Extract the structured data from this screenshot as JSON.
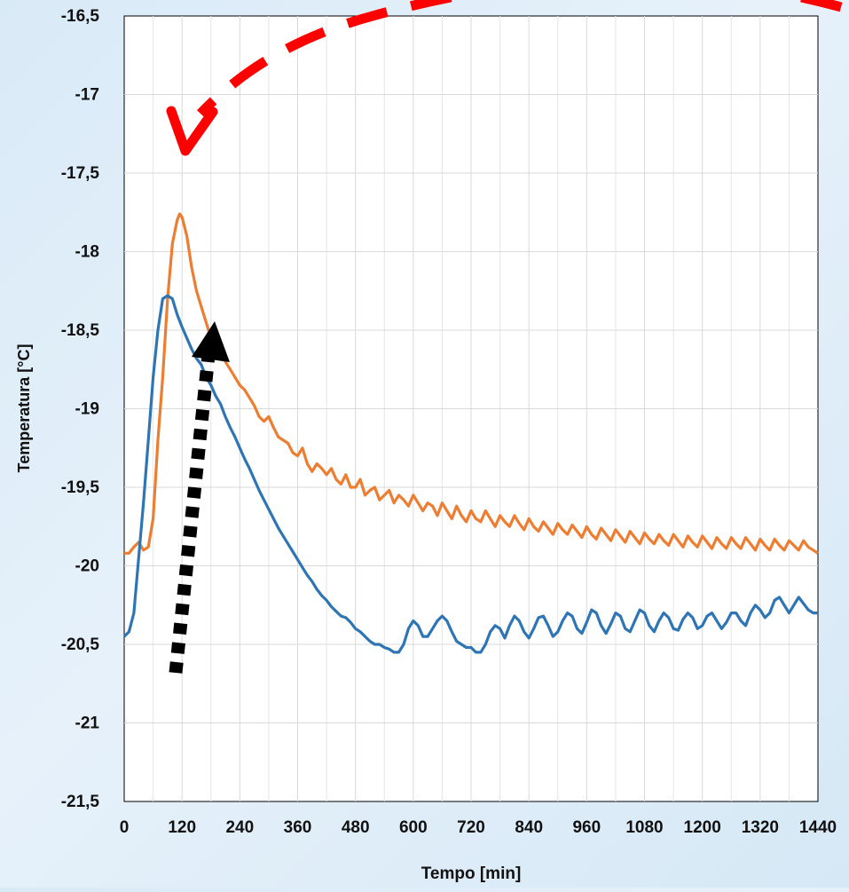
{
  "chart_data": {
    "type": "line",
    "title": "",
    "xlabel": "Tempo [min]",
    "ylabel": "Temperatura [°C]",
    "xlim": [
      0,
      1440
    ],
    "ylim": [
      -21.5,
      -16.5
    ],
    "x_ticks": [
      0,
      120,
      240,
      360,
      480,
      600,
      720,
      840,
      960,
      1080,
      1200,
      1320,
      1440
    ],
    "y_ticks": [
      -21.5,
      -21,
      -20.5,
      -20,
      -19.5,
      -19,
      -18.5,
      -18,
      -17.5,
      -17,
      -16.5
    ],
    "x_tick_labels": [
      "0",
      "120",
      "240",
      "360",
      "480",
      "600",
      "720",
      "840",
      "960",
      "1080",
      "1200",
      "1320",
      "1440"
    ],
    "y_tick_labels": [
      "-21,5",
      "-21",
      "-20,5",
      "-20",
      "-19,5",
      "-19",
      "-18,5",
      "-18",
      "-17,5",
      "-17",
      "-16,5"
    ],
    "grid": true,
    "legend": "none",
    "series": [
      {
        "color": "#ed7d31",
        "points": [
          [
            0,
            -19.92
          ],
          [
            10,
            -19.92
          ],
          [
            20,
            -19.88
          ],
          [
            30,
            -19.85
          ],
          [
            40,
            -19.9
          ],
          [
            50,
            -19.88
          ],
          [
            60,
            -19.7
          ],
          [
            70,
            -19.2
          ],
          [
            80,
            -18.8
          ],
          [
            90,
            -18.3
          ],
          [
            100,
            -17.95
          ],
          [
            110,
            -17.8
          ],
          [
            115,
            -17.76
          ],
          [
            120,
            -17.78
          ],
          [
            130,
            -17.9
          ],
          [
            140,
            -18.1
          ],
          [
            150,
            -18.25
          ],
          [
            160,
            -18.35
          ],
          [
            170,
            -18.45
          ],
          [
            180,
            -18.55
          ],
          [
            190,
            -18.6
          ],
          [
            200,
            -18.65
          ],
          [
            210,
            -18.7
          ],
          [
            220,
            -18.75
          ],
          [
            230,
            -18.8
          ],
          [
            240,
            -18.85
          ],
          [
            250,
            -18.88
          ],
          [
            260,
            -18.93
          ],
          [
            270,
            -18.98
          ],
          [
            280,
            -19.05
          ],
          [
            290,
            -19.08
          ],
          [
            300,
            -19.05
          ],
          [
            310,
            -19.12
          ],
          [
            320,
            -19.18
          ],
          [
            330,
            -19.2
          ],
          [
            340,
            -19.22
          ],
          [
            350,
            -19.28
          ],
          [
            360,
            -19.3
          ],
          [
            370,
            -19.25
          ],
          [
            380,
            -19.35
          ],
          [
            390,
            -19.4
          ],
          [
            400,
            -19.35
          ],
          [
            410,
            -19.38
          ],
          [
            420,
            -19.42
          ],
          [
            430,
            -19.38
          ],
          [
            440,
            -19.45
          ],
          [
            450,
            -19.48
          ],
          [
            460,
            -19.42
          ],
          [
            470,
            -19.5
          ],
          [
            480,
            -19.5
          ],
          [
            490,
            -19.45
          ],
          [
            500,
            -19.55
          ],
          [
            510,
            -19.52
          ],
          [
            520,
            -19.5
          ],
          [
            530,
            -19.58
          ],
          [
            540,
            -19.55
          ],
          [
            550,
            -19.52
          ],
          [
            560,
            -19.6
          ],
          [
            570,
            -19.55
          ],
          [
            580,
            -19.58
          ],
          [
            590,
            -19.62
          ],
          [
            600,
            -19.55
          ],
          [
            610,
            -19.6
          ],
          [
            620,
            -19.65
          ],
          [
            630,
            -19.6
          ],
          [
            640,
            -19.62
          ],
          [
            650,
            -19.68
          ],
          [
            660,
            -19.6
          ],
          [
            670,
            -19.65
          ],
          [
            680,
            -19.7
          ],
          [
            690,
            -19.62
          ],
          [
            700,
            -19.68
          ],
          [
            710,
            -19.72
          ],
          [
            720,
            -19.65
          ],
          [
            730,
            -19.7
          ],
          [
            740,
            -19.72
          ],
          [
            750,
            -19.65
          ],
          [
            760,
            -19.7
          ],
          [
            770,
            -19.75
          ],
          [
            780,
            -19.68
          ],
          [
            790,
            -19.72
          ],
          [
            800,
            -19.75
          ],
          [
            810,
            -19.68
          ],
          [
            820,
            -19.73
          ],
          [
            830,
            -19.77
          ],
          [
            840,
            -19.7
          ],
          [
            850,
            -19.75
          ],
          [
            860,
            -19.78
          ],
          [
            870,
            -19.72
          ],
          [
            880,
            -19.76
          ],
          [
            890,
            -19.8
          ],
          [
            900,
            -19.73
          ],
          [
            910,
            -19.77
          ],
          [
            920,
            -19.8
          ],
          [
            930,
            -19.74
          ],
          [
            940,
            -19.78
          ],
          [
            950,
            -19.82
          ],
          [
            960,
            -19.75
          ],
          [
            970,
            -19.8
          ],
          [
            980,
            -19.83
          ],
          [
            990,
            -19.76
          ],
          [
            1000,
            -19.8
          ],
          [
            1010,
            -19.84
          ],
          [
            1020,
            -19.77
          ],
          [
            1030,
            -19.81
          ],
          [
            1040,
            -19.85
          ],
          [
            1050,
            -19.78
          ],
          [
            1060,
            -19.82
          ],
          [
            1070,
            -19.86
          ],
          [
            1080,
            -19.79
          ],
          [
            1090,
            -19.83
          ],
          [
            1100,
            -19.86
          ],
          [
            1110,
            -19.8
          ],
          [
            1120,
            -19.84
          ],
          [
            1130,
            -19.87
          ],
          [
            1140,
            -19.8
          ],
          [
            1150,
            -19.84
          ],
          [
            1160,
            -19.88
          ],
          [
            1170,
            -19.81
          ],
          [
            1180,
            -19.85
          ],
          [
            1190,
            -19.88
          ],
          [
            1200,
            -19.81
          ],
          [
            1210,
            -19.85
          ],
          [
            1220,
            -19.89
          ],
          [
            1230,
            -19.82
          ],
          [
            1240,
            -19.86
          ],
          [
            1250,
            -19.89
          ],
          [
            1260,
            -19.82
          ],
          [
            1270,
            -19.86
          ],
          [
            1280,
            -19.89
          ],
          [
            1290,
            -19.82
          ],
          [
            1300,
            -19.86
          ],
          [
            1310,
            -19.9
          ],
          [
            1320,
            -19.83
          ],
          [
            1330,
            -19.87
          ],
          [
            1340,
            -19.9
          ],
          [
            1350,
            -19.83
          ],
          [
            1360,
            -19.87
          ],
          [
            1370,
            -19.9
          ],
          [
            1380,
            -19.84
          ],
          [
            1390,
            -19.87
          ],
          [
            1400,
            -19.9
          ],
          [
            1410,
            -19.84
          ],
          [
            1420,
            -19.88
          ],
          [
            1430,
            -19.9
          ],
          [
            1440,
            -19.92
          ]
        ]
      },
      {
        "color": "#2e75b6",
        "points": [
          [
            0,
            -20.45
          ],
          [
            10,
            -20.42
          ],
          [
            20,
            -20.3
          ],
          [
            30,
            -19.95
          ],
          [
            40,
            -19.6
          ],
          [
            50,
            -19.2
          ],
          [
            60,
            -18.8
          ],
          [
            70,
            -18.5
          ],
          [
            80,
            -18.3
          ],
          [
            90,
            -18.28
          ],
          [
            100,
            -18.3
          ],
          [
            110,
            -18.4
          ],
          [
            120,
            -18.48
          ],
          [
            130,
            -18.55
          ],
          [
            140,
            -18.62
          ],
          [
            150,
            -18.68
          ],
          [
            160,
            -18.72
          ],
          [
            170,
            -18.8
          ],
          [
            180,
            -18.85
          ],
          [
            190,
            -18.92
          ],
          [
            200,
            -18.97
          ],
          [
            210,
            -19.05
          ],
          [
            220,
            -19.12
          ],
          [
            230,
            -19.18
          ],
          [
            240,
            -19.25
          ],
          [
            250,
            -19.32
          ],
          [
            260,
            -19.38
          ],
          [
            270,
            -19.45
          ],
          [
            280,
            -19.52
          ],
          [
            290,
            -19.58
          ],
          [
            300,
            -19.64
          ],
          [
            310,
            -19.7
          ],
          [
            320,
            -19.76
          ],
          [
            330,
            -19.81
          ],
          [
            340,
            -19.86
          ],
          [
            350,
            -19.91
          ],
          [
            360,
            -19.96
          ],
          [
            370,
            -20.01
          ],
          [
            380,
            -20.06
          ],
          [
            390,
            -20.1
          ],
          [
            400,
            -20.15
          ],
          [
            410,
            -20.19
          ],
          [
            420,
            -20.22
          ],
          [
            430,
            -20.26
          ],
          [
            440,
            -20.29
          ],
          [
            450,
            -20.32
          ],
          [
            460,
            -20.33
          ],
          [
            470,
            -20.36
          ],
          [
            480,
            -20.4
          ],
          [
            490,
            -20.42
          ],
          [
            500,
            -20.45
          ],
          [
            510,
            -20.48
          ],
          [
            520,
            -20.5
          ],
          [
            530,
            -20.5
          ],
          [
            540,
            -20.52
          ],
          [
            550,
            -20.53
          ],
          [
            560,
            -20.55
          ],
          [
            570,
            -20.55
          ],
          [
            580,
            -20.5
          ],
          [
            590,
            -20.4
          ],
          [
            600,
            -20.35
          ],
          [
            610,
            -20.38
          ],
          [
            620,
            -20.45
          ],
          [
            630,
            -20.45
          ],
          [
            640,
            -20.4
          ],
          [
            650,
            -20.35
          ],
          [
            660,
            -20.32
          ],
          [
            670,
            -20.35
          ],
          [
            680,
            -20.42
          ],
          [
            690,
            -20.48
          ],
          [
            700,
            -20.5
          ],
          [
            710,
            -20.52
          ],
          [
            720,
            -20.52
          ],
          [
            730,
            -20.55
          ],
          [
            740,
            -20.55
          ],
          [
            750,
            -20.5
          ],
          [
            760,
            -20.42
          ],
          [
            770,
            -20.38
          ],
          [
            780,
            -20.4
          ],
          [
            790,
            -20.46
          ],
          [
            800,
            -20.38
          ],
          [
            810,
            -20.32
          ],
          [
            820,
            -20.35
          ],
          [
            830,
            -20.42
          ],
          [
            840,
            -20.46
          ],
          [
            850,
            -20.4
          ],
          [
            860,
            -20.33
          ],
          [
            870,
            -20.32
          ],
          [
            880,
            -20.38
          ],
          [
            890,
            -20.45
          ],
          [
            900,
            -20.42
          ],
          [
            910,
            -20.35
          ],
          [
            920,
            -20.3
          ],
          [
            930,
            -20.32
          ],
          [
            940,
            -20.4
          ],
          [
            950,
            -20.43
          ],
          [
            960,
            -20.36
          ],
          [
            970,
            -20.28
          ],
          [
            980,
            -20.3
          ],
          [
            990,
            -20.38
          ],
          [
            1000,
            -20.43
          ],
          [
            1010,
            -20.37
          ],
          [
            1020,
            -20.3
          ],
          [
            1030,
            -20.32
          ],
          [
            1040,
            -20.4
          ],
          [
            1050,
            -20.42
          ],
          [
            1060,
            -20.35
          ],
          [
            1070,
            -20.28
          ],
          [
            1080,
            -20.3
          ],
          [
            1090,
            -20.38
          ],
          [
            1100,
            -20.42
          ],
          [
            1110,
            -20.35
          ],
          [
            1120,
            -20.3
          ],
          [
            1130,
            -20.33
          ],
          [
            1140,
            -20.4
          ],
          [
            1150,
            -20.41
          ],
          [
            1160,
            -20.34
          ],
          [
            1170,
            -20.3
          ],
          [
            1180,
            -20.33
          ],
          [
            1190,
            -20.4
          ],
          [
            1200,
            -20.38
          ],
          [
            1210,
            -20.32
          ],
          [
            1220,
            -20.3
          ],
          [
            1230,
            -20.35
          ],
          [
            1240,
            -20.4
          ],
          [
            1250,
            -20.36
          ],
          [
            1260,
            -20.3
          ],
          [
            1270,
            -20.3
          ],
          [
            1280,
            -20.35
          ],
          [
            1290,
            -20.38
          ],
          [
            1300,
            -20.3
          ],
          [
            1310,
            -20.25
          ],
          [
            1320,
            -20.28
          ],
          [
            1330,
            -20.33
          ],
          [
            1340,
            -20.3
          ],
          [
            1350,
            -20.22
          ],
          [
            1360,
            -20.2
          ],
          [
            1370,
            -20.25
          ],
          [
            1380,
            -20.3
          ],
          [
            1390,
            -20.25
          ],
          [
            1400,
            -20.2
          ],
          [
            1410,
            -20.24
          ],
          [
            1420,
            -20.28
          ],
          [
            1430,
            -20.3
          ],
          [
            1440,
            -20.3
          ]
        ]
      }
    ],
    "annotations": [
      {
        "type": "dashed-curved-arrow",
        "color": "#ff0000"
      },
      {
        "type": "dotted-straight-arrow",
        "color": "#000000"
      }
    ]
  }
}
